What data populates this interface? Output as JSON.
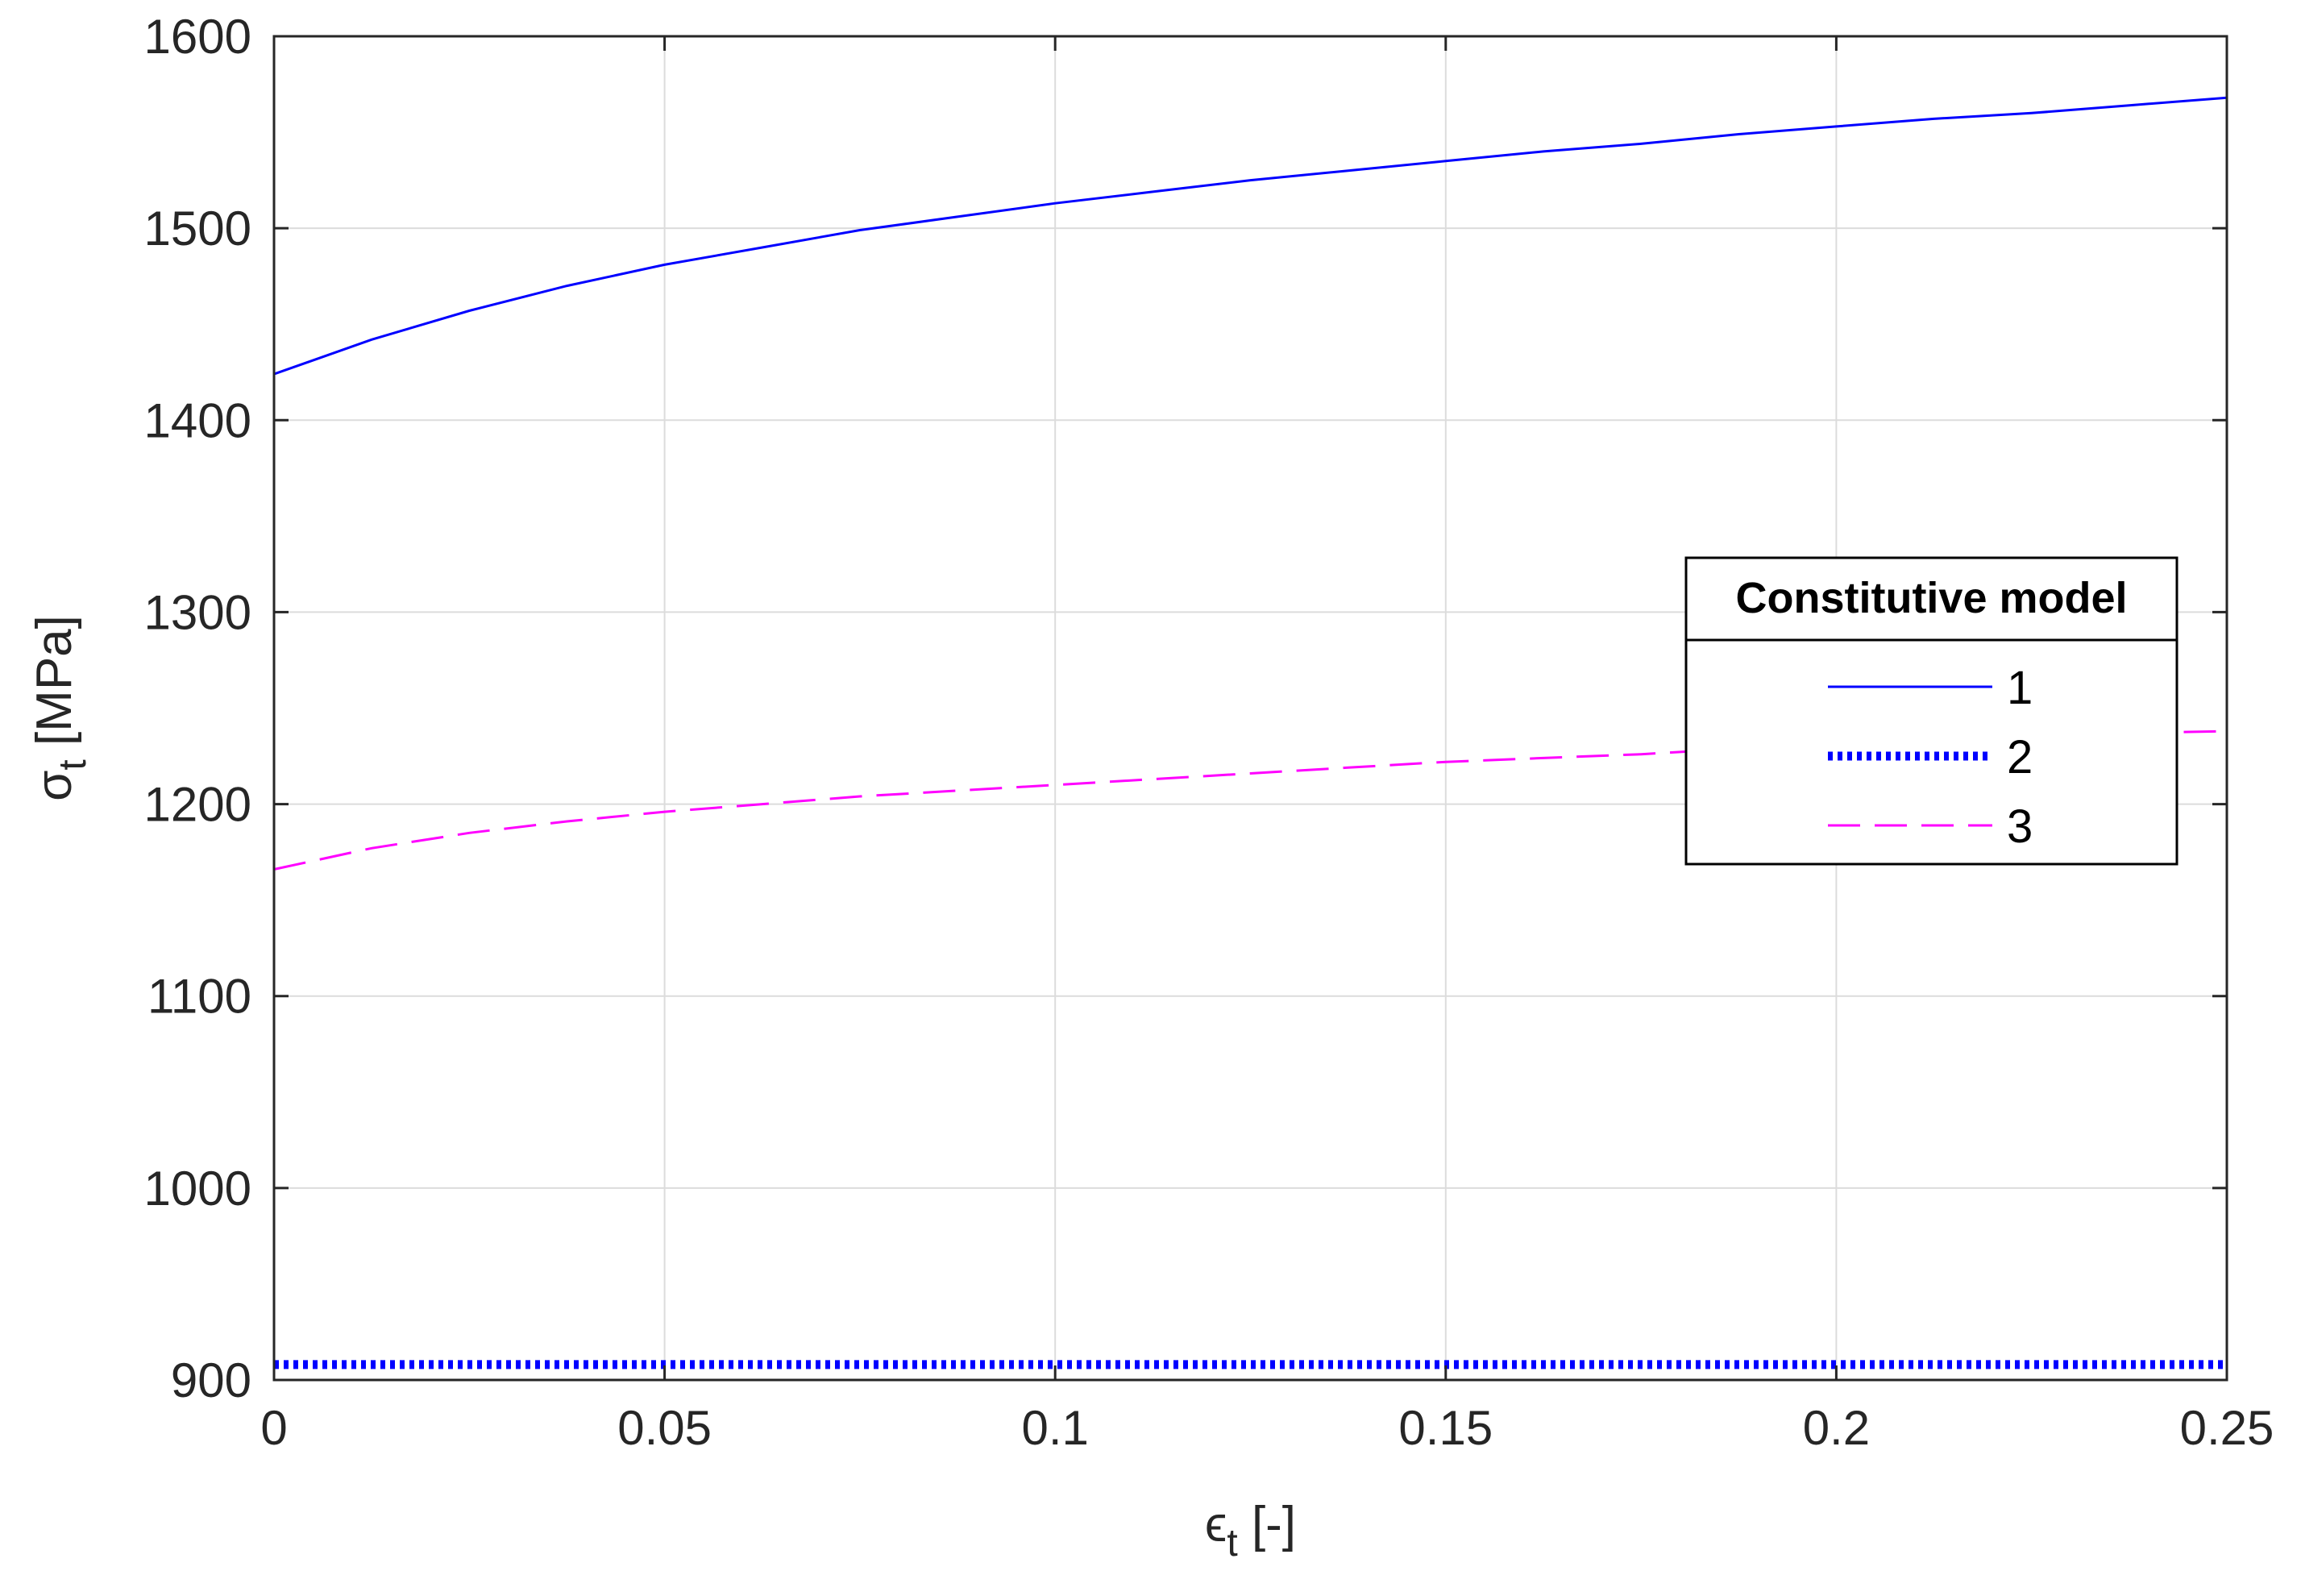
{
  "chart_data": {
    "type": "line",
    "xlabel": "[-]",
    "xlabel_symbol": "ϵ",
    "xlabel_subscript": "t",
    "ylabel": "[MPa]",
    "ylabel_symbol": "σ",
    "ylabel_subscript": "t",
    "xlim": [
      0,
      0.25
    ],
    "ylim": [
      900,
      1600
    ],
    "xticks": [
      0,
      0.05,
      0.1,
      0.15,
      0.2,
      0.25
    ],
    "xtick_labels": [
      "0",
      "0.05",
      "0.1",
      "0.15",
      "0.2",
      "0.25"
    ],
    "yticks": [
      900,
      1000,
      1100,
      1200,
      1300,
      1400,
      1500,
      1600
    ],
    "ytick_labels": [
      "900",
      "1000",
      "1100",
      "1200",
      "1300",
      "1400",
      "1500",
      "1600"
    ],
    "grid": true,
    "legend": {
      "title": "Constitutive model",
      "placement": "right"
    },
    "series": [
      {
        "name": "1",
        "color": "#0000ff",
        "style": "solid",
        "x": [
          0,
          0.0125,
          0.025,
          0.0375,
          0.05,
          0.0625,
          0.075,
          0.0875,
          0.1,
          0.1125,
          0.125,
          0.1375,
          0.15,
          0.1625,
          0.175,
          0.1875,
          0.2,
          0.2125,
          0.225,
          0.2375,
          0.25
        ],
        "y": [
          1424,
          1442,
          1457,
          1470,
          1481,
          1490,
          1499,
          1506,
          1513,
          1519,
          1525,
          1530,
          1535,
          1540,
          1544,
          1549,
          1553,
          1557,
          1560,
          1564,
          1568
        ]
      },
      {
        "name": "2",
        "color": "#0000ff",
        "style": "dotted",
        "x": [
          0,
          0.25
        ],
        "y": [
          908,
          908
        ]
      },
      {
        "name": "3",
        "color": "#ff00ff",
        "style": "dashed",
        "x": [
          0,
          0.0125,
          0.025,
          0.0375,
          0.05,
          0.0625,
          0.075,
          0.0875,
          0.1,
          0.1125,
          0.125,
          0.1375,
          0.15,
          0.1625,
          0.175,
          0.1875,
          0.2,
          0.2125,
          0.225,
          0.2375,
          0.25
        ],
        "y": [
          1166,
          1177,
          1185,
          1191,
          1196,
          1200,
          1204,
          1207,
          1210,
          1213,
          1216,
          1219,
          1222,
          1224,
          1226,
          1229,
          1231,
          1233,
          1235,
          1237,
          1238
        ]
      }
    ]
  }
}
